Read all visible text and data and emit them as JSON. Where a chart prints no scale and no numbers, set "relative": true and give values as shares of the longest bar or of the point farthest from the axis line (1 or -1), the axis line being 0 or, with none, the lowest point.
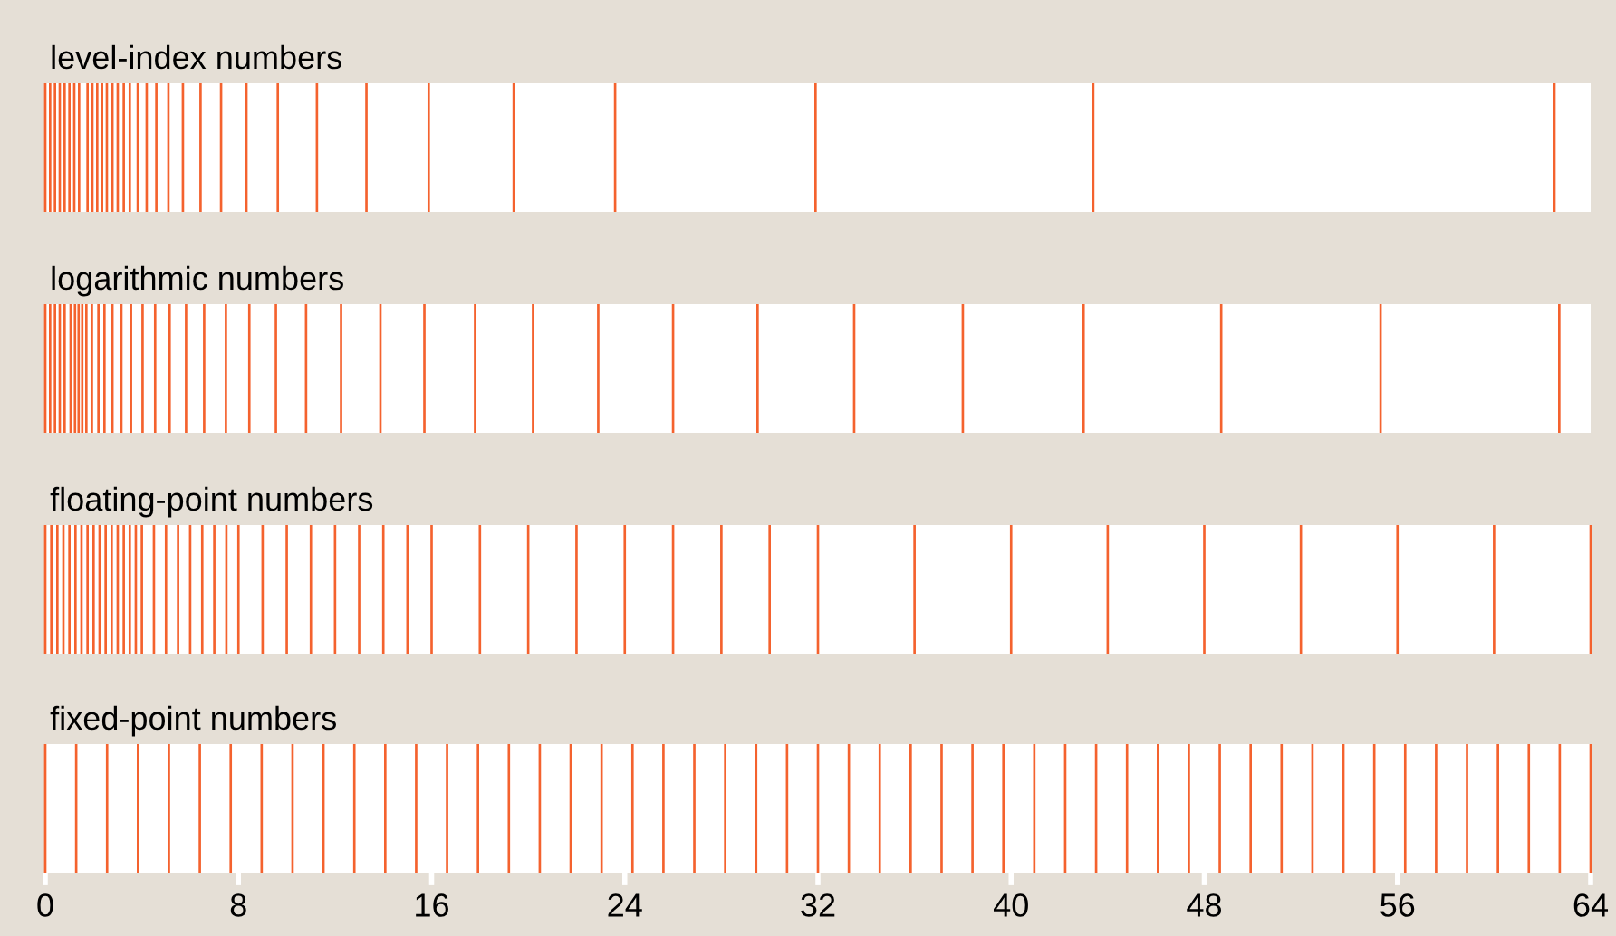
{
  "chart_data": [
    {
      "type": "bar",
      "title": "level-index numbers",
      "relative": true,
      "color": "#f4622e",
      "xlim": [
        0,
        64
      ],
      "tick_labels": false,
      "x": [
        0,
        0.2,
        0.4,
        0.6,
        0.8,
        1.0,
        1.2,
        1.4,
        1.75,
        1.95,
        2.15,
        2.35,
        2.55,
        2.78,
        3.0,
        3.25,
        3.5,
        3.83,
        4.2,
        4.6,
        5.1,
        5.7,
        6.43,
        7.28,
        8.33,
        9.63,
        11.25,
        13.3,
        15.88,
        19.4,
        23.6,
        31.9,
        43.4,
        62.5
      ],
      "values": [
        1,
        1,
        1,
        1,
        1,
        1,
        1,
        1,
        1,
        1,
        1,
        1,
        1,
        1,
        1,
        1,
        1,
        1,
        1,
        1,
        1,
        1,
        1,
        1,
        1,
        1,
        1,
        1,
        1,
        1,
        1,
        1,
        1,
        1
      ]
    },
    {
      "type": "bar",
      "title": "logarithmic numbers",
      "relative": true,
      "color": "#f4622e",
      "xlim": [
        0,
        64
      ],
      "tick_labels": false,
      "x": [
        0,
        0.2,
        0.4,
        0.6,
        0.8,
        1.05,
        1.23,
        1.38,
        1.53,
        1.7,
        1.93,
        2.2,
        2.45,
        2.78,
        3.15,
        3.55,
        4.03,
        4.55,
        5.15,
        5.83,
        6.58,
        7.48,
        8.45,
        9.55,
        10.8,
        12.25,
        13.88,
        15.7,
        17.8,
        20.2,
        22.9,
        26.0,
        29.5,
        33.5,
        38.0,
        43.0,
        48.7,
        55.3,
        62.7
      ],
      "values": [
        1,
        1,
        1,
        1,
        1,
        1,
        1,
        1,
        1,
        1,
        1,
        1,
        1,
        1,
        1,
        1,
        1,
        1,
        1,
        1,
        1,
        1,
        1,
        1,
        1,
        1,
        1,
        1,
        1,
        1,
        1,
        1,
        1,
        1,
        1,
        1,
        1,
        1,
        1
      ]
    },
    {
      "type": "bar",
      "title": "floating-point numbers",
      "relative": true,
      "color": "#f4622e",
      "xlim": [
        0,
        64
      ],
      "tick_labels": false,
      "x": [
        0,
        0.25,
        0.5,
        0.75,
        1,
        1.25,
        1.5,
        1.75,
        2,
        2.25,
        2.5,
        2.75,
        3,
        3.25,
        3.5,
        3.75,
        4,
        4.5,
        5,
        5.5,
        6,
        6.5,
        7,
        7.5,
        8,
        9,
        10,
        11,
        12,
        13,
        14,
        15,
        16,
        18,
        20,
        22,
        24,
        26,
        28,
        30,
        32,
        36,
        40,
        44,
        48,
        52,
        56,
        60,
        64
      ],
      "values": [
        1,
        1,
        1,
        1,
        1,
        1,
        1,
        1,
        1,
        1,
        1,
        1,
        1,
        1,
        1,
        1,
        1,
        1,
        1,
        1,
        1,
        1,
        1,
        1,
        1,
        1,
        1,
        1,
        1,
        1,
        1,
        1,
        1,
        1,
        1,
        1,
        1,
        1,
        1,
        1,
        1,
        1,
        1,
        1,
        1,
        1,
        1,
        1,
        1
      ]
    },
    {
      "type": "bar",
      "title": "fixed-point numbers",
      "relative": true,
      "color": "#f4622e",
      "xlim": [
        0,
        64
      ],
      "xticks": [
        0,
        8,
        16,
        24,
        32,
        40,
        48,
        56,
        64
      ],
      "tick_labels": "x",
      "x": [
        0,
        1.28,
        2.56,
        3.84,
        5.12,
        6.4,
        7.68,
        8.96,
        10.24,
        11.52,
        12.8,
        14.08,
        15.36,
        16.64,
        17.92,
        19.2,
        20.48,
        21.76,
        23.04,
        24.32,
        25.6,
        26.88,
        28.16,
        29.44,
        30.72,
        32,
        33.28,
        34.56,
        35.84,
        37.12,
        38.4,
        39.68,
        40.96,
        42.24,
        43.52,
        44.8,
        46.08,
        47.36,
        48.64,
        49.92,
        51.2,
        52.48,
        53.76,
        55.04,
        56.32,
        57.6,
        58.88,
        60.16,
        61.44,
        62.72,
        64
      ],
      "values": [
        1,
        1,
        1,
        1,
        1,
        1,
        1,
        1,
        1,
        1,
        1,
        1,
        1,
        1,
        1,
        1,
        1,
        1,
        1,
        1,
        1,
        1,
        1,
        1,
        1,
        1,
        1,
        1,
        1,
        1,
        1,
        1,
        1,
        1,
        1,
        1,
        1,
        1,
        1,
        1,
        1,
        1,
        1,
        1,
        1,
        1,
        1,
        1,
        1,
        1,
        1
      ]
    }
  ]
}
